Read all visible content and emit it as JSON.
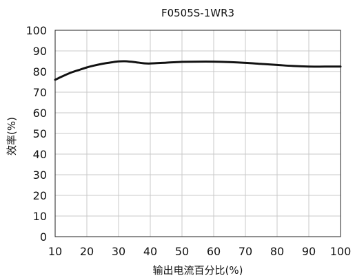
{
  "chart_data": {
    "type": "line",
    "title": "F0505S-1WR3",
    "xlabel": "输出电流百分比(%)",
    "ylabel": "效率(%)",
    "xlim": [
      10,
      100
    ],
    "ylim": [
      0,
      100
    ],
    "xticks": [
      10,
      20,
      30,
      40,
      50,
      60,
      70,
      80,
      90,
      100
    ],
    "yticks": [
      0,
      10,
      20,
      30,
      40,
      50,
      60,
      70,
      80,
      90,
      100
    ],
    "xtick_labels": [
      "10",
      "20",
      "30",
      "40",
      "50",
      "60",
      "70",
      "80",
      "90",
      "100"
    ],
    "ytick_labels": [
      "0",
      "10",
      "20",
      "30",
      "40",
      "50",
      "60",
      "70",
      "80",
      "90",
      "100"
    ],
    "grid": true,
    "line_color": "#111111",
    "series": [
      {
        "x": [
          10,
          12,
          15,
          18,
          20,
          22,
          25,
          28,
          30,
          32,
          35,
          38,
          40,
          45,
          50,
          55,
          60,
          65,
          70,
          75,
          80,
          85,
          90,
          95,
          100
        ],
        "values": [
          76,
          77.5,
          79.5,
          81,
          82,
          82.8,
          83.8,
          84.5,
          84.9,
          85,
          84.6,
          84,
          83.9,
          84.3,
          84.7,
          84.8,
          84.8,
          84.6,
          84.2,
          83.7,
          83.2,
          82.7,
          82.4,
          82.4,
          82.4
        ]
      }
    ]
  }
}
